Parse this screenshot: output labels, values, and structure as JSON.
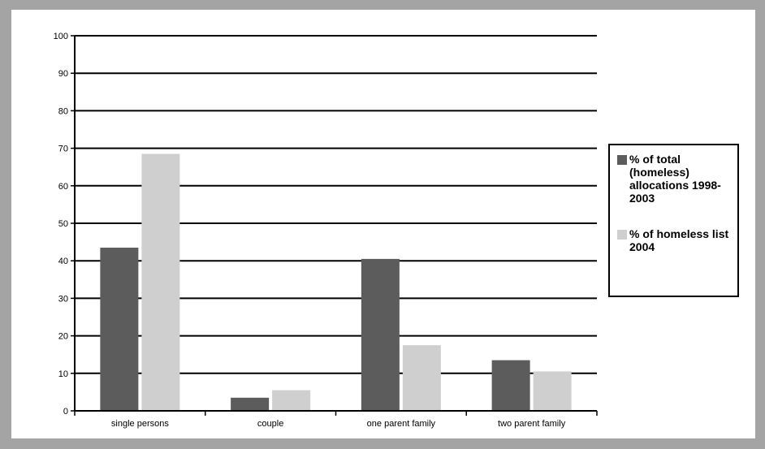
{
  "chart_data": {
    "type": "bar",
    "categories": [
      "single persons",
      "couple",
      "one parent family",
      "two parent family"
    ],
    "series": [
      {
        "name": "% of total (homeless) allocations 1998-2003",
        "color": "#5c5c5c",
        "values": [
          43.5,
          3.5,
          40.5,
          13.5
        ]
      },
      {
        "name": "% of homeless list 2004",
        "color": "#cfcfcf",
        "values": [
          68.5,
          5.5,
          17.5,
          10.5
        ]
      }
    ],
    "yticks": [
      "0",
      "10",
      "20",
      "30",
      "40",
      "50",
      "60",
      "70",
      "80",
      "90",
      "100"
    ],
    "ylim": [
      0,
      100
    ],
    "grid": true,
    "legend_position": "right",
    "title": "",
    "xlabel": "",
    "ylabel": ""
  }
}
